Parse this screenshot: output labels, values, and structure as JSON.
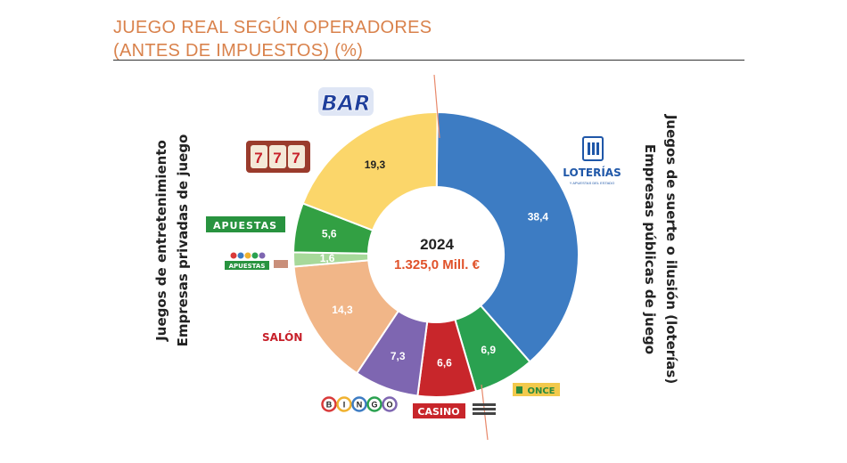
{
  "header": {
    "title_line1": "JUEGO REAL SEGÚN OPERADORES",
    "title_line2": "(ANTES DE IMPUESTOS) (%)"
  },
  "chart_data": {
    "type": "pie",
    "subtype": "donut",
    "title": "JUEGO REAL SEGÚN OPERADORES (ANTES DE IMPUESTOS) (%)",
    "center_year": "2024",
    "center_total": "1.325,0 Mill. €",
    "slices": [
      {
        "label": "LOTERÍAS",
        "value": 38.4,
        "display": "38,4",
        "color": "#3d7cc3",
        "text_color": "#ffffff"
      },
      {
        "label": "ONCE",
        "value": 6.9,
        "display": "6,9",
        "color": "#2aa150",
        "text_color": "#ffffff"
      },
      {
        "label": "CASINO",
        "value": 6.6,
        "display": "6,6",
        "color": "#c8262b",
        "text_color": "#ffffff"
      },
      {
        "label": "BINGO",
        "value": 7.3,
        "display": "7,3",
        "color": "#7e66b1",
        "text_color": "#ffffff"
      },
      {
        "label": "SALÓN",
        "value": 14.3,
        "display": "14,3",
        "color": "#f1b688",
        "text_color": "#ffffff"
      },
      {
        "label": "APUESTAS",
        "value": 1.6,
        "display": "1,6",
        "color": "#a7d99a",
        "text_color": "#ffffff"
      },
      {
        "label": "APUESTAS",
        "value": 5.6,
        "display": "5,6",
        "color": "#32a043",
        "text_color": "#ffffff"
      },
      {
        "label": "BAR",
        "value": 19.3,
        "display": "19,3",
        "color": "#fbd66a",
        "text_color": "#222222"
      }
    ],
    "left_axis_line1": "Juegos de entretenimiento",
    "left_axis_line2": "Empresas privadas de juego",
    "right_axis_line1": "Juegos de suerte o ilusión (loterías)",
    "right_axis_line2": "Empresas públicas de juego"
  },
  "logos": {
    "bar": "BAR",
    "loterias": "LOTERÍAS",
    "loterias_sub": "Y APUESTAS DEL ESTADO",
    "once": "ONCE",
    "apuestas": "APUESTAS",
    "apuestas_small": "APUESTAS",
    "salon": "SALÓN",
    "bingo": [
      "B",
      "I",
      "N",
      "G",
      "O"
    ],
    "casino": "CASINO"
  }
}
